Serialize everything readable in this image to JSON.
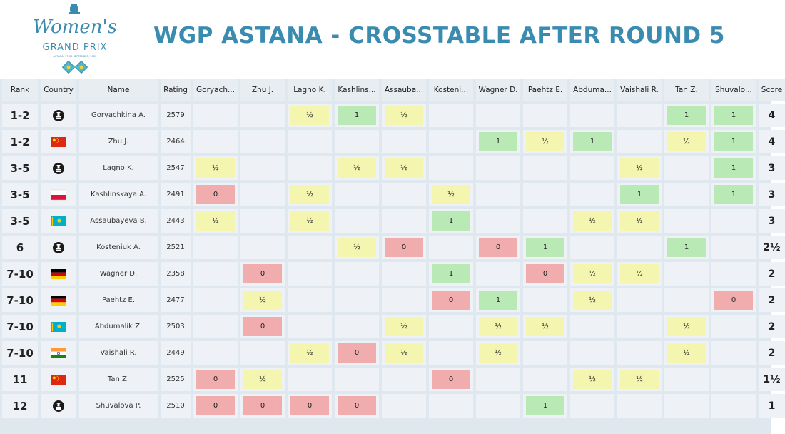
{
  "header": {
    "title": "WGP ASTANA - CROSSTABLE AFTER ROUND 5",
    "logo_line1": "Women's",
    "logo_line2": "GRAND PRIX",
    "logo_line3": "ASTANA, 17-30 SEPTEMBER, 2022"
  },
  "colors": {
    "title": "#3a8bb0",
    "win": "#b9eab5",
    "draw": "#f4f6b0",
    "loss": "#f1adad",
    "cell": "#eef2f6",
    "background": "#dfe7ef"
  },
  "columns": {
    "rank": "Rank",
    "country": "Country",
    "name": "Name",
    "rating": "Rating",
    "score": "Score",
    "opponents": [
      "Goryach...",
      "Zhu J.",
      "Lagno K.",
      "Kashlins...",
      "Assauba...",
      "Kosteni...",
      "Wagner D.",
      "Paehtz E.",
      "Abduma...",
      "Vaishali R.",
      "Tan Z.",
      "Shuvalo..."
    ]
  },
  "rows": [
    {
      "rank": "1-2",
      "flag": "fide-icon",
      "name": "Goryachkina A.",
      "rating": "2579",
      "score": "4",
      "results": [
        "",
        "",
        "½",
        "1",
        "½",
        "",
        "",
        "",
        "",
        "",
        "1",
        "1"
      ]
    },
    {
      "rank": "1-2",
      "flag": "china-flag-icon",
      "name": "Zhu J.",
      "rating": "2464",
      "score": "4",
      "results": [
        "",
        "",
        "",
        "",
        "",
        "",
        "1",
        "½",
        "1",
        "",
        "½",
        "1"
      ]
    },
    {
      "rank": "3-5",
      "flag": "fide-icon",
      "name": "Lagno K.",
      "rating": "2547",
      "score": "3",
      "results": [
        "½",
        "",
        "",
        "½",
        "½",
        "",
        "",
        "",
        "",
        "½",
        "",
        "1"
      ]
    },
    {
      "rank": "3-5",
      "flag": "poland-flag-icon",
      "name": "Kashlinskaya A.",
      "rating": "2491",
      "score": "3",
      "results": [
        "0",
        "",
        "½",
        "",
        "",
        "½",
        "",
        "",
        "",
        "1",
        "",
        "1"
      ]
    },
    {
      "rank": "3-5",
      "flag": "kazakhstan-flag-icon",
      "name": "Assaubayeva B.",
      "rating": "2443",
      "score": "3",
      "results": [
        "½",
        "",
        "½",
        "",
        "",
        "1",
        "",
        "",
        "½",
        "½",
        "",
        ""
      ]
    },
    {
      "rank": "6",
      "flag": "fide-icon",
      "name": "Kosteniuk A.",
      "rating": "2521",
      "score": "2½",
      "results": [
        "",
        "",
        "",
        "½",
        "0",
        "",
        "0",
        "1",
        "",
        "",
        "1",
        ""
      ]
    },
    {
      "rank": "7-10",
      "flag": "germany-flag-icon",
      "name": "Wagner D.",
      "rating": "2358",
      "score": "2",
      "results": [
        "",
        "0",
        "",
        "",
        "",
        "1",
        "",
        "0",
        "½",
        "½",
        "",
        ""
      ]
    },
    {
      "rank": "7-10",
      "flag": "germany-flag-icon",
      "name": "Paehtz E.",
      "rating": "2477",
      "score": "2",
      "results": [
        "",
        "½",
        "",
        "",
        "",
        "0",
        "1",
        "",
        "½",
        "",
        "",
        "0"
      ]
    },
    {
      "rank": "7-10",
      "flag": "kazakhstan-flag-icon",
      "name": "Abdumalik Z.",
      "rating": "2503",
      "score": "2",
      "results": [
        "",
        "0",
        "",
        "",
        "½",
        "",
        "½",
        "½",
        "",
        "",
        "½",
        ""
      ]
    },
    {
      "rank": "7-10",
      "flag": "india-flag-icon",
      "name": "Vaishali R.",
      "rating": "2449",
      "score": "2",
      "results": [
        "",
        "",
        "½",
        "0",
        "½",
        "",
        "½",
        "",
        "",
        "",
        "½",
        ""
      ]
    },
    {
      "rank": "11",
      "flag": "china-flag-icon",
      "name": "Tan Z.",
      "rating": "2525",
      "score": "1½",
      "results": [
        "0",
        "½",
        "",
        "",
        "",
        "0",
        "",
        "",
        "½",
        "½",
        "",
        ""
      ]
    },
    {
      "rank": "12",
      "flag": "fide-icon",
      "name": "Shuvalova P.",
      "rating": "2510",
      "score": "1",
      "results": [
        "0",
        "0",
        "0",
        "0",
        "",
        "",
        "",
        "1",
        "",
        "",
        "",
        ""
      ]
    }
  ]
}
